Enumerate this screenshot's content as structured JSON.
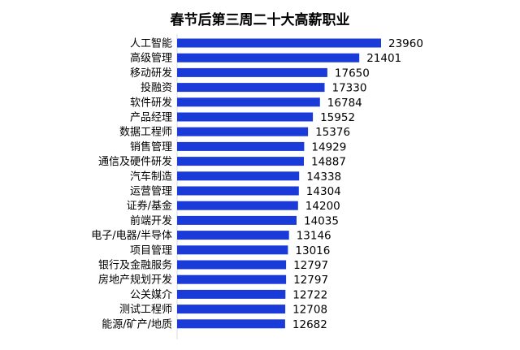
{
  "chart_data": {
    "type": "bar",
    "orientation": "horizontal",
    "title": "春节后第三周二十大高薪职业",
    "xlabel": "",
    "ylabel": "",
    "categories": [
      "人工智能",
      "高级管理",
      "移动研发",
      "投融资",
      "软件研发",
      "产品经理",
      "数据工程师",
      "销售管理",
      "通信及硬件研发",
      "汽车制造",
      "运营管理",
      "证券/基金",
      "前端开发",
      "电子/电器/半导体",
      "项目管理",
      "银行及金融服务",
      "房地产规划开发",
      "公关媒介",
      "测试工程师",
      "能源/矿产/地质"
    ],
    "values": [
      23960,
      21401,
      17650,
      17330,
      16784,
      15952,
      15376,
      14929,
      14887,
      14338,
      14304,
      14200,
      14035,
      13146,
      13016,
      12797,
      12797,
      12722,
      12708,
      12682
    ],
    "value_labels": [
      "23960",
      "21401",
      "17650",
      "17330",
      "16784",
      "15952",
      "15376",
      "14929",
      "14887",
      "14338",
      "14304",
      "14200",
      "14035",
      "13146",
      "13016",
      "12797",
      "12797",
      "12722",
      "12708",
      "12682"
    ],
    "xlim": [
      0,
      24000
    ],
    "grid": false,
    "legend": "none",
    "colors": {
      "bar": "#1a3bd8",
      "text": "#000000",
      "background": "#ffffff"
    }
  }
}
